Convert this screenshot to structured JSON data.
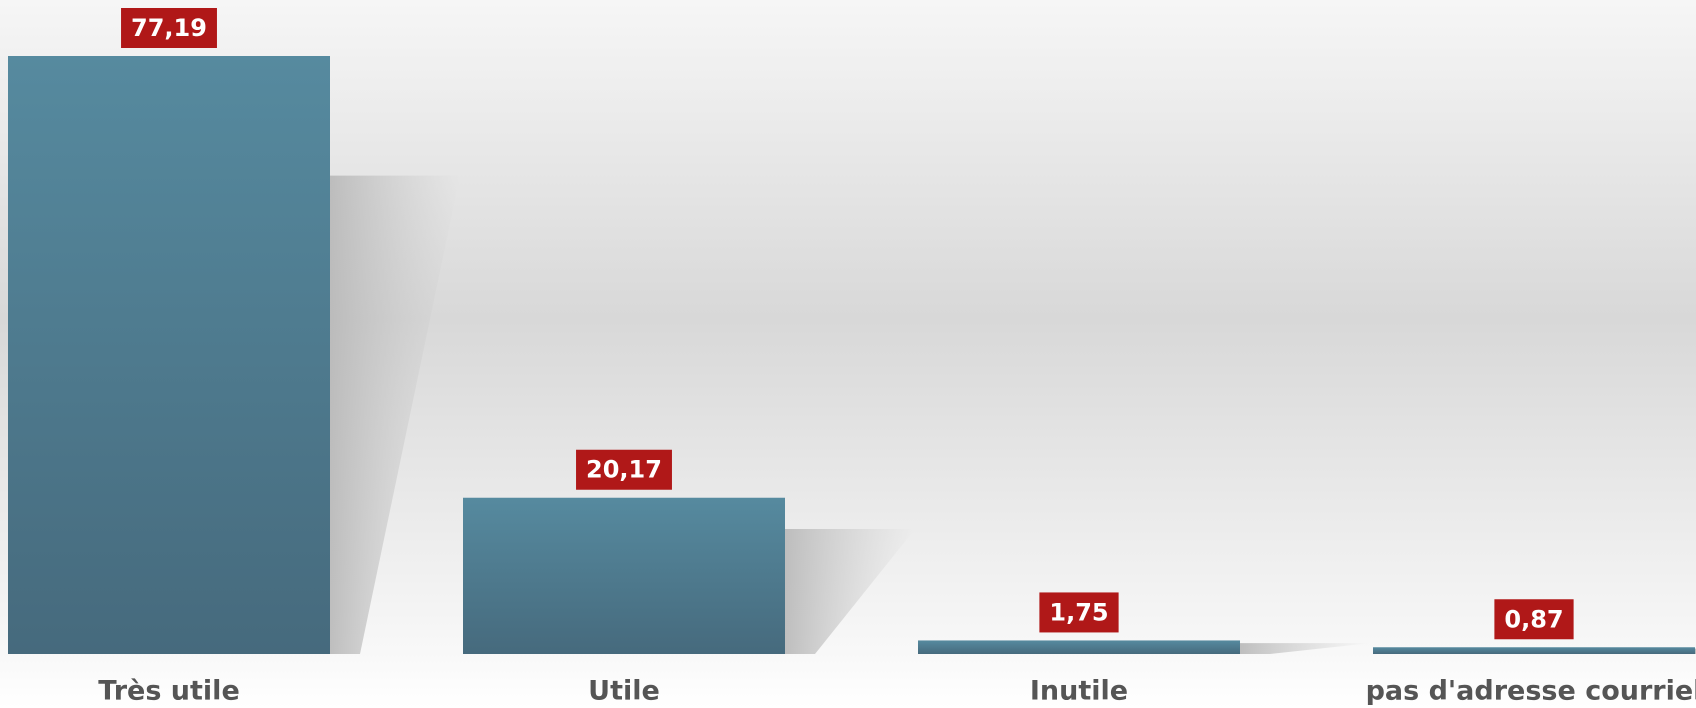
{
  "chart_data": {
    "type": "bar",
    "categories": [
      "Très utile",
      "Utile",
      "Inutile",
      "pas d'adresse courriel"
    ],
    "values": [
      77.19,
      20.17,
      1.75,
      0.87
    ],
    "value_labels": [
      "77,19",
      "20,17",
      "1,75",
      "0,87"
    ],
    "color": "#4f7d92",
    "label_color": "#b01818"
  }
}
